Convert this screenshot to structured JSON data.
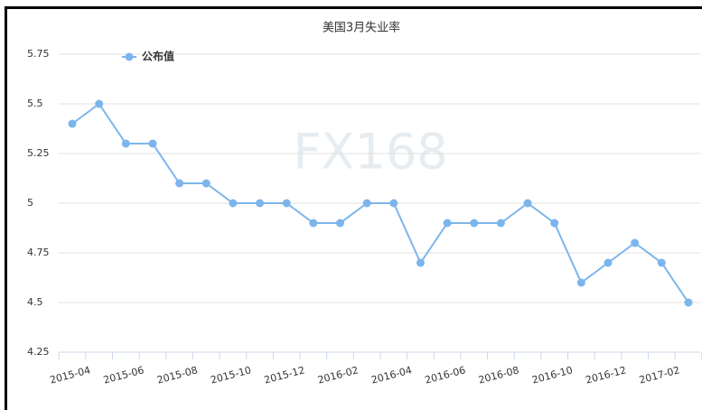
{
  "chart_data": {
    "type": "line",
    "title": "美国3月失业率",
    "watermark": "FX168",
    "categories": [
      "2015-04",
      null,
      "2015-06",
      null,
      "2015-08",
      null,
      "2015-10",
      null,
      "2015-12",
      null,
      "2016-02",
      null,
      "2016-04",
      null,
      "2016-06",
      null,
      "2016-08",
      null,
      "2016-10",
      null,
      "2016-12",
      null,
      "2017-02",
      null
    ],
    "series": [
      {
        "name": "公布值",
        "color": "#7cb5ec",
        "values": [
          5.4,
          5.5,
          5.3,
          5.3,
          5.1,
          5.1,
          5.0,
          5.0,
          5.0,
          4.9,
          4.9,
          5.0,
          5.0,
          4.7,
          4.9,
          4.9,
          4.9,
          5.0,
          4.9,
          4.6,
          4.7,
          4.8,
          4.7,
          4.5
        ]
      }
    ],
    "ylim": [
      4.25,
      5.75
    ],
    "yticks": [
      4.25,
      4.5,
      4.75,
      5,
      5.25,
      5.5,
      5.75
    ],
    "grid": true,
    "legend": "top-left"
  }
}
